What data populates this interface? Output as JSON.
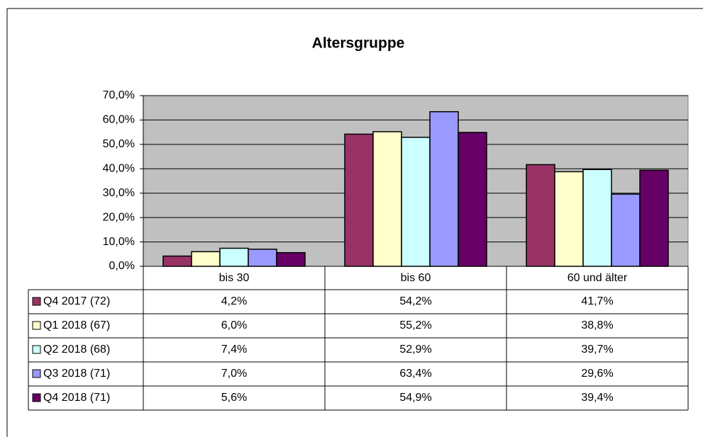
{
  "chart_data": {
    "type": "bar",
    "title": "Altersgruppe",
    "categories": [
      "bis 30",
      "bis 60",
      "60 und älter"
    ],
    "series": [
      {
        "name": "Q4 2017 (72)",
        "color": "#993366",
        "values": [
          4.2,
          54.2,
          41.7
        ],
        "value_labels": [
          "4,2%",
          "54,2%",
          "41,7%"
        ]
      },
      {
        "name": "Q1 2018 (67)",
        "color": "#ffffcc",
        "values": [
          6.0,
          55.2,
          38.8
        ],
        "value_labels": [
          "6,0%",
          "55,2%",
          "38,8%"
        ]
      },
      {
        "name": "Q2 2018 (68)",
        "color": "#ccffff",
        "values": [
          7.4,
          52.9,
          39.7
        ],
        "value_labels": [
          "7,4%",
          "52,9%",
          "39,7%"
        ]
      },
      {
        "name": "Q3 2018 (71)",
        "color": "#9999ff",
        "values": [
          7.0,
          63.4,
          29.6
        ],
        "value_labels": [
          "7,0%",
          "63,4%",
          "29,6%"
        ]
      },
      {
        "name": "Q4 2018 (71)",
        "color": "#660066",
        "values": [
          5.6,
          54.9,
          39.4
        ],
        "value_labels": [
          "5,6%",
          "54,9%",
          "39,4%"
        ]
      }
    ],
    "ylim": [
      0,
      70
    ],
    "yticks": [
      {
        "value": 0,
        "label": "0,0%"
      },
      {
        "value": 10,
        "label": "10,0%"
      },
      {
        "value": 20,
        "label": "20,0%"
      },
      {
        "value": 30,
        "label": "30,0%"
      },
      {
        "value": 40,
        "label": "40,0%"
      },
      {
        "value": 50,
        "label": "50,0%"
      },
      {
        "value": 60,
        "label": "60,0%"
      },
      {
        "value": 70,
        "label": "70,0%"
      }
    ],
    "grid": true,
    "plot_background": "#c0c0c0"
  }
}
